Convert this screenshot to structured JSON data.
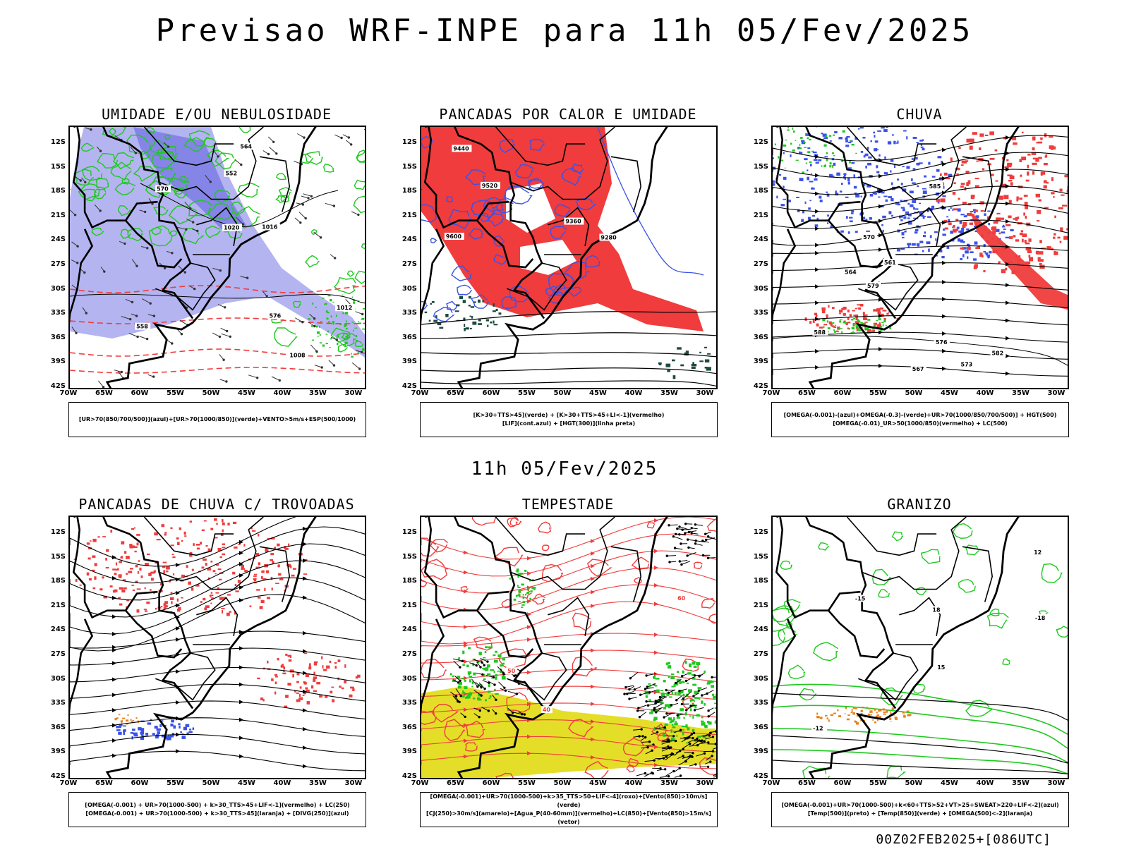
{
  "title": "Previsao WRF-INPE  para 11h 05/Fev/2025",
  "mid_date": "11h 05/Fev/2025",
  "footer": "00Z02FEB2025+[086UTC]",
  "lat_labels": [
    "12S",
    "15S",
    "18S",
    "21S",
    "24S",
    "27S",
    "30S",
    "33S",
    "36S",
    "39S",
    "42S"
  ],
  "lon_labels": [
    "70W",
    "65W",
    "60W",
    "55W",
    "50W",
    "45W",
    "40W",
    "35W",
    "30W"
  ],
  "colors": {
    "red": "#f03c3c",
    "green": "#1ec81e",
    "blue": "#3a52e8",
    "lightblue": "#a7a7ef",
    "yellow": "#e4de28",
    "orange": "#e8801e",
    "dark": "#1d4a40"
  },
  "panels": [
    {
      "title": "UMIDADE E/OU NEBULOSIDADE",
      "legend": [
        "[UR>70(850/700/500)](azul)+[UR>70(1000/850)](verde)+VENTO>5m/s+ESP(500/1000)"
      ],
      "contour_labels": [
        "1012",
        "1016",
        "1020",
        "1008",
        "576",
        "570",
        "564",
        "558",
        "552"
      ]
    },
    {
      "title": "PANCADAS POR CALOR E UMIDADE",
      "legend": [
        "[K>30+TTS>45](verde) + [K>30+TTS>45+LI<-1](vermelho)",
        "[LIF](cont.azul) + [HGT(300)](linha preta)"
      ],
      "contour_labels": [
        "9600",
        "9520",
        "9440",
        "9360",
        "9280"
      ]
    },
    {
      "title": "CHUVA",
      "legend": [
        "[OMEGA(-0.001)-(azul)+OMEGA(-0.3)-(verde)+UR>70(1000/850/700/500)] + HGT(500)",
        "[OMEGA(-0.01)_UR>50(1000/850)(vermelho) + LC(500)"
      ],
      "contour_labels": [
        "588",
        "585",
        "582",
        "579",
        "576",
        "573",
        "570",
        "567",
        "564",
        "561"
      ]
    },
    {
      "title": "PANCADAS DE CHUVA C/ TROVOADAS",
      "legend": [
        "[OMEGA(-0.001) + UR>70(1000-500) + k>30_TTS>45+LIF<-1](vermelho) + LC(250)",
        "[OMEGA(-0.001) + UR>70(1000-500) + k>30_TTS>45](laranja) + [DIVG(250)](azul)"
      ],
      "contour_labels": []
    },
    {
      "title": "TEMPESTADE",
      "legend": [
        "[OMEGA(-0.001)+UR>70(1000-500)+k>35_TTS>50+LIF<-4](roxo)+[Vento(850)>10m/s](verde)",
        "[CJ(250)>30m/s](amarelo)+[Agua_P(40-60mm)](vermelho)+LC(850)+[Vento(850)>15m/s](vetor)"
      ],
      "contour_labels": [
        "40",
        "50",
        "60"
      ]
    },
    {
      "title": "GRANIZO",
      "legend": [
        "[OMEGA(-0.001)+UR>70(1000-500)+k<60+TTS>52+VT>25+SWEAT>220+LIF<-2](azul)",
        "[Temp(500)](preto) + [Temp(850)](verde) + [OMEGA(500)<-2](laranja)"
      ],
      "contour_labels": [
        "-12",
        "-15",
        "-18",
        "12",
        "15",
        "18"
      ]
    }
  ]
}
